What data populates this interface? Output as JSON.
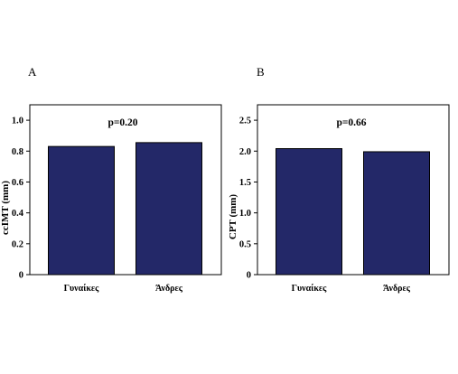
{
  "chart_data": [
    {
      "type": "bar",
      "panel_label": "A",
      "categories": [
        "Γυναίκες",
        "Άνδρες"
      ],
      "values": [
        0.83,
        0.855
      ],
      "ylabel": "ccIMT (mm)",
      "ylim": [
        0,
        1.1
      ],
      "yticks": [
        0,
        0.2,
        0.4,
        0.6,
        0.8,
        1.0
      ],
      "ytick_labels": [
        "0",
        "0.2",
        "0.4",
        "0.6",
        "0.8",
        "1.0"
      ],
      "annotation": "p=0.20",
      "bar_color": "#232868",
      "grid": false
    },
    {
      "type": "bar",
      "panel_label": "B",
      "categories": [
        "Γυναίκες",
        "Άνδρες"
      ],
      "values": [
        2.04,
        1.99
      ],
      "ylabel": "CPT (mm)",
      "ylim": [
        0,
        2.75
      ],
      "yticks": [
        0,
        0.5,
        1.0,
        1.5,
        2.0,
        2.5
      ],
      "ytick_labels": [
        "0",
        "0.5",
        "1.0",
        "1.5",
        "2.0",
        "2.5"
      ],
      "annotation": "p=0.66",
      "bar_color": "#232868",
      "grid": false
    }
  ]
}
